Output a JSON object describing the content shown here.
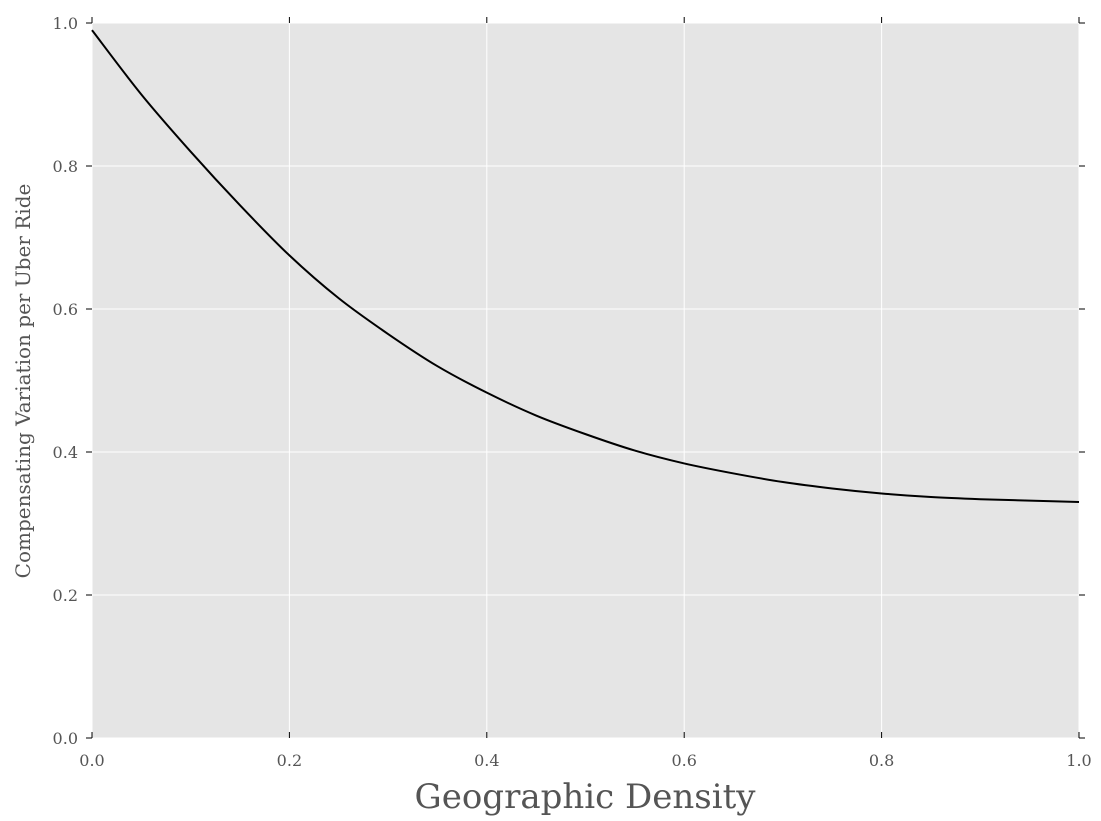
{
  "chart_data": {
    "type": "line",
    "title": "",
    "xlabel": "Geographic Density",
    "ylabel": "Compensating Variation per Uber Ride",
    "xlim": [
      0.0,
      1.0
    ],
    "ylim": [
      0.0,
      1.0
    ],
    "x_ticks": [
      "0.0",
      "0.2",
      "0.4",
      "0.6",
      "0.8",
      "1.0"
    ],
    "y_ticks": [
      "0.0",
      "0.2",
      "0.4",
      "0.6",
      "0.8",
      "1.0"
    ],
    "grid": true,
    "legend": "none",
    "series": [
      {
        "color": "#000000",
        "x": [
          0.0,
          0.05,
          0.1,
          0.15,
          0.2,
          0.25,
          0.3,
          0.35,
          0.4,
          0.45,
          0.5,
          0.55,
          0.6,
          0.65,
          0.7,
          0.75,
          0.8,
          0.85,
          0.9,
          0.95,
          1.0
        ],
        "y": [
          0.99,
          0.9,
          0.82,
          0.745,
          0.675,
          0.615,
          0.565,
          0.52,
          0.483,
          0.451,
          0.425,
          0.402,
          0.384,
          0.37,
          0.358,
          0.349,
          0.342,
          0.337,
          0.334,
          0.332,
          0.33
        ]
      }
    ],
    "colors": {
      "plot_background": "#e5e5e5",
      "grid": "#ffffff",
      "line": "#000000",
      "text": "#555555"
    }
  }
}
